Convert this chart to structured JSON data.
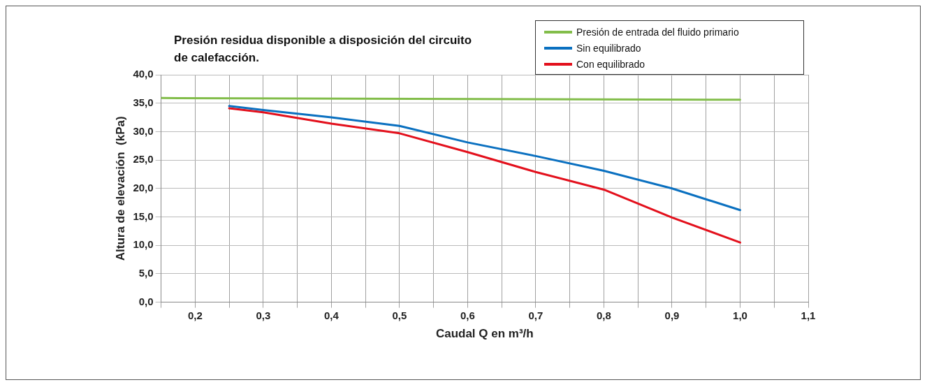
{
  "chart_data": {
    "type": "line",
    "title": "Presión residua disponible a disposición del circuito de calefacción.",
    "xlabel": "Caudal Q en m³/h",
    "ylabel": "Altura de elevación  (kPa)",
    "xlim": [
      0.15,
      1.1
    ],
    "xticks": [
      {
        "value": 0.15,
        "label": null
      },
      {
        "value": 0.2,
        "label": "0,2"
      },
      {
        "value": 0.25,
        "label": null
      },
      {
        "value": 0.3,
        "label": "0,3"
      },
      {
        "value": 0.35,
        "label": null
      },
      {
        "value": 0.4,
        "label": "0,4"
      },
      {
        "value": 0.45,
        "label": null
      },
      {
        "value": 0.5,
        "label": "0,5"
      },
      {
        "value": 0.55,
        "label": null
      },
      {
        "value": 0.6,
        "label": "0,6"
      },
      {
        "value": 0.65,
        "label": null
      },
      {
        "value": 0.7,
        "label": "0,7"
      },
      {
        "value": 0.75,
        "label": null
      },
      {
        "value": 0.8,
        "label": "0,8"
      },
      {
        "value": 0.85,
        "label": null
      },
      {
        "value": 0.9,
        "label": "0,9"
      },
      {
        "value": 0.95,
        "label": null
      },
      {
        "value": 1.0,
        "label": "1,0"
      },
      {
        "value": 1.05,
        "label": null
      },
      {
        "value": 1.1,
        "label": "1,1"
      }
    ],
    "ylim": [
      0,
      40
    ],
    "yticks": [
      {
        "value": 0,
        "label": "0,0"
      },
      {
        "value": 5,
        "label": "5,0"
      },
      {
        "value": 10,
        "label": "10,0"
      },
      {
        "value": 15,
        "label": "15,0"
      },
      {
        "value": 20,
        "label": "20,0"
      },
      {
        "value": 25,
        "label": "25,0"
      },
      {
        "value": 30,
        "label": "30,0"
      },
      {
        "value": 35,
        "label": "35,0"
      },
      {
        "value": 40,
        "label": "40,0"
      }
    ],
    "grid": true,
    "legend": "top right",
    "marker": "none",
    "line_style": "solid",
    "series": [
      {
        "name": "Presión de entrada del fluido primario",
        "color": "#82bd4a",
        "x": [
          0.15,
          1.0
        ],
        "values": [
          35.9,
          35.6
        ]
      },
      {
        "name": "Sin equilibrado",
        "color": "#0a70c0",
        "x": [
          0.25,
          0.3,
          0.4,
          0.5,
          0.6,
          0.7,
          0.8,
          0.9,
          1.0
        ],
        "values": [
          34.5,
          33.8,
          32.5,
          31.0,
          28.1,
          25.7,
          23.1,
          20.0,
          16.2
        ]
      },
      {
        "name": "Con equilibrado",
        "color": "#e3101c",
        "x": [
          0.25,
          0.3,
          0.4,
          0.5,
          0.6,
          0.7,
          0.8,
          0.9,
          1.0
        ],
        "values": [
          34.1,
          33.4,
          31.4,
          29.7,
          26.4,
          22.9,
          19.8,
          14.9,
          10.5
        ]
      }
    ]
  }
}
